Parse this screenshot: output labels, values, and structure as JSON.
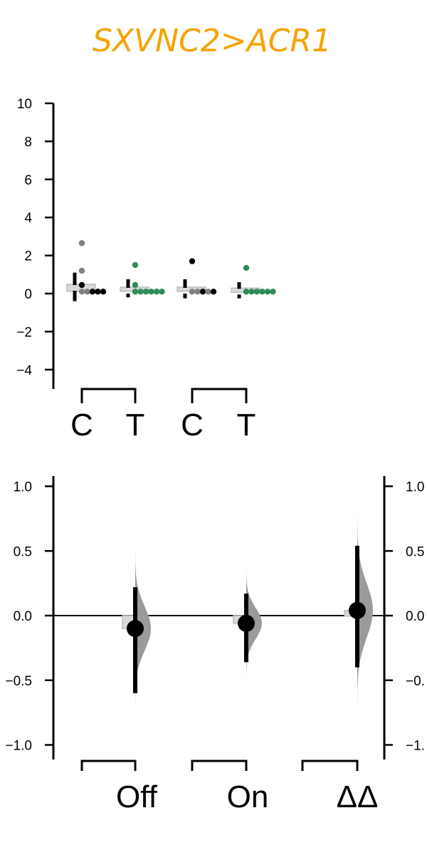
{
  "title": "SXVNC2>ACR1",
  "colors": {
    "title": "#f5a300",
    "control": "#808080",
    "test": "#2e8b57",
    "dark": "#000000",
    "ci_fill": "#9a9a9a"
  },
  "chart_data": [
    {
      "type": "scatter",
      "name": "raw_data_panel",
      "ylim": [
        -5,
        10
      ],
      "yticks": [
        -4,
        -2,
        0,
        2,
        4,
        6,
        8,
        10
      ],
      "ytick_labels": [
        "−4",
        "−2",
        "0",
        "2",
        "4",
        "6",
        "8",
        "10"
      ],
      "group_labels": [
        "C",
        "T",
        "C",
        "T"
      ],
      "groups": [
        {
          "label": "C",
          "mean": 0.3,
          "sd_low": -0.4,
          "sd_high": 1.1,
          "points": [
            {
              "y": 2.65,
              "color": "control"
            },
            {
              "y": 1.2,
              "color": "control"
            },
            {
              "y": 0.45,
              "color": "dark"
            },
            {
              "y": 0.1,
              "color": "control"
            },
            {
              "y": 0.1,
              "color": "control"
            },
            {
              "y": 0.1,
              "color": "dark"
            },
            {
              "y": 0.1,
              "color": "dark"
            },
            {
              "y": 0.1,
              "color": "dark"
            }
          ]
        },
        {
          "label": "T",
          "mean": 0.15,
          "sd_low": -0.2,
          "sd_high": 0.75,
          "points": [
            {
              "y": 1.5,
              "color": "test"
            },
            {
              "y": 0.45,
              "color": "test"
            },
            {
              "y": 0.1,
              "color": "test"
            },
            {
              "y": 0.1,
              "color": "test"
            },
            {
              "y": 0.1,
              "color": "test"
            },
            {
              "y": 0.1,
              "color": "test"
            },
            {
              "y": 0.1,
              "color": "test"
            },
            {
              "y": 0.1,
              "color": "test"
            }
          ]
        },
        {
          "label": "C",
          "mean": 0.15,
          "sd_low": -0.25,
          "sd_high": 0.75,
          "points": [
            {
              "y": 1.7,
              "color": "dark"
            },
            {
              "y": 0.1,
              "color": "control"
            },
            {
              "y": 0.1,
              "color": "control"
            },
            {
              "y": 0.1,
              "color": "dark"
            },
            {
              "y": 0.1,
              "color": "control"
            },
            {
              "y": 0.1,
              "color": "dark"
            }
          ]
        },
        {
          "label": "T",
          "mean": 0.1,
          "sd_low": -0.25,
          "sd_high": 0.6,
          "points": [
            {
              "y": 1.35,
              "color": "test"
            },
            {
              "y": 0.1,
              "color": "test"
            },
            {
              "y": 0.1,
              "color": "test"
            },
            {
              "y": 0.1,
              "color": "test"
            },
            {
              "y": 0.1,
              "color": "test"
            },
            {
              "y": 0.1,
              "color": "test"
            },
            {
              "y": 0.1,
              "color": "test"
            }
          ]
        }
      ]
    },
    {
      "type": "scatter",
      "name": "effect_size_panel",
      "ylim": [
        -1.1,
        1.1
      ],
      "yticks": [
        -1.0,
        -0.5,
        0.0,
        0.5,
        1.0
      ],
      "ytick_labels": [
        "−1.0",
        "−0.5",
        "0.0",
        "0.5",
        "1.0"
      ],
      "right_ytick_labels": [
        "−1.",
        "−0.",
        "0.0",
        "0.5",
        "1.0"
      ],
      "x_labels": [
        "Off",
        "On",
        "ΔΔ"
      ],
      "estimates": [
        {
          "label": "Off",
          "value": -0.1,
          "ci_low": -0.6,
          "ci_high": 0.22,
          "dist_low": -0.95,
          "dist_high": 0.55,
          "dist_sd": 0.17,
          "bar": -0.1
        },
        {
          "label": "On",
          "value": -0.06,
          "ci_low": -0.36,
          "ci_high": 0.17,
          "dist_low": -0.55,
          "dist_high": 0.4,
          "dist_sd": 0.12,
          "bar": -0.06
        },
        {
          "label": "ΔΔ",
          "value": 0.04,
          "ci_low": -0.4,
          "ci_high": 0.54,
          "dist_low": -0.72,
          "dist_high": 1.0,
          "dist_sd": 0.21,
          "bar": 0.04
        }
      ]
    }
  ]
}
